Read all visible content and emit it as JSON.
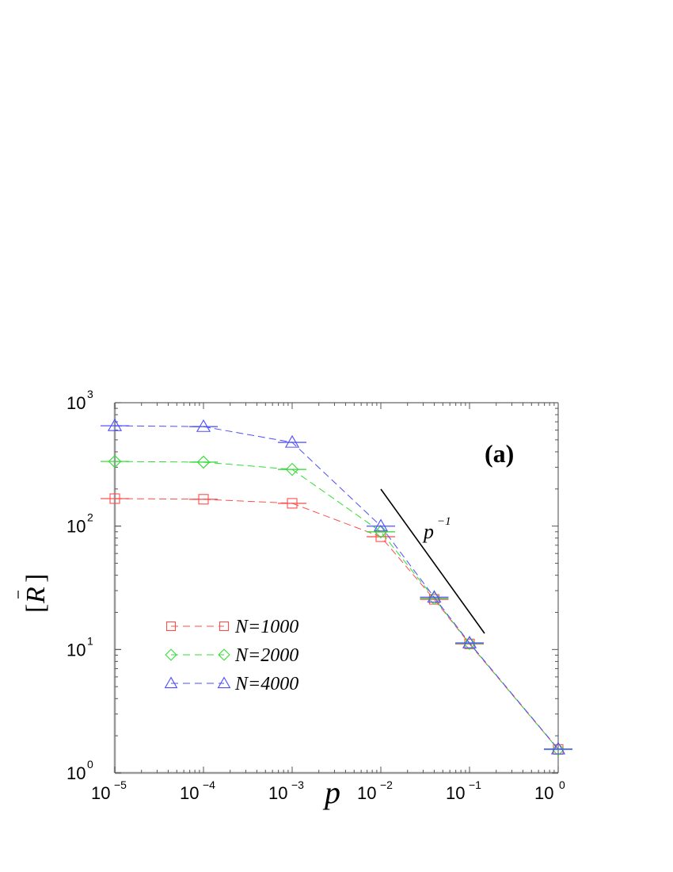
{
  "chart_data": {
    "type": "line",
    "title": "",
    "panel_label": "(a)",
    "xlabel": "p",
    "ylabel": "[R̄]",
    "xscale": "log",
    "yscale": "log",
    "xlim": [
      1e-05,
      1
    ],
    "ylim": [
      1,
      1000
    ],
    "grid": false,
    "legend_position": "lower left",
    "x_ticks": [
      {
        "base": "10",
        "exp": "−5",
        "value": 1e-05
      },
      {
        "base": "10",
        "exp": "−4",
        "value": 0.0001
      },
      {
        "base": "10",
        "exp": "−3",
        "value": 0.001
      },
      {
        "base": "10",
        "exp": "−2",
        "value": 0.01
      },
      {
        "base": "10",
        "exp": "−1",
        "value": 0.1
      },
      {
        "base": "10",
        "exp": "0",
        "value": 1
      }
    ],
    "y_ticks": [
      {
        "base": "10",
        "exp": "0",
        "value": 1
      },
      {
        "base": "10",
        "exp": "1",
        "value": 10
      },
      {
        "base": "10",
        "exp": "2",
        "value": 100
      },
      {
        "base": "10",
        "exp": "3",
        "value": 1000
      }
    ],
    "x": [
      1e-05,
      0.0001,
      0.001,
      0.01,
      0.04,
      0.1,
      1
    ],
    "series": [
      {
        "name": "N=1000",
        "color": "#ff4d4d",
        "marker": "square",
        "values": [
          167,
          165,
          153,
          82,
          25.5,
          11.1,
          1.55
        ]
      },
      {
        "name": "N=2000",
        "color": "#33dd33",
        "marker": "diamond",
        "values": [
          334,
          330,
          288,
          90,
          26,
          11.2,
          1.55
        ]
      },
      {
        "name": "N=4000",
        "color": "#4d4dff",
        "marker": "triangle",
        "values": [
          650,
          640,
          477,
          100,
          26.5,
          11.3,
          1.56
        ]
      }
    ],
    "annotations": [
      {
        "type": "reference-line",
        "label_base": "p",
        "label_exp": "−1",
        "slope": -1,
        "from": [
          0.01,
          200
        ],
        "to": [
          0.15,
          13.3
        ]
      }
    ]
  },
  "labels": {
    "panel": "(a)",
    "xaxis": "p",
    "yaxis": "R",
    "ref_base": "p",
    "ref_exp": "−1",
    "legend": [
      "N=1000",
      "N=2000",
      "N=4000"
    ]
  }
}
